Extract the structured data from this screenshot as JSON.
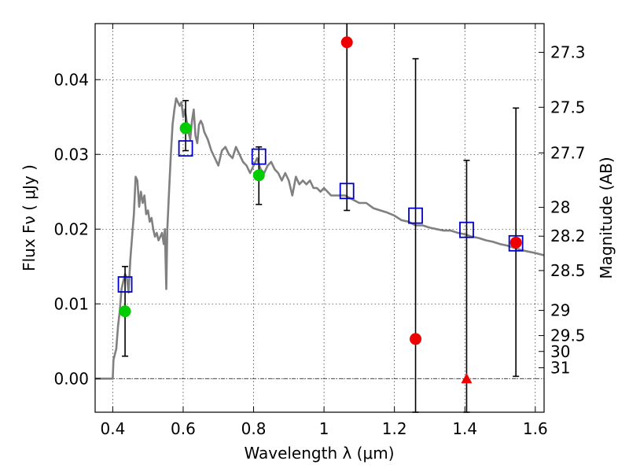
{
  "chart_data": {
    "type": "scatter",
    "xlabel": "Wavelength  λ (μm)",
    "ylabel": "Flux  Fν  ( μJy )",
    "y2label": "Magnitude (AB)",
    "xlim": [
      0.35,
      1.625
    ],
    "ylim": [
      -0.0045,
      0.0475
    ],
    "grid": true,
    "x_ticks": [
      {
        "v": 0.4,
        "label": "0.4"
      },
      {
        "v": 0.6,
        "label": "0.6"
      },
      {
        "v": 0.8,
        "label": "0.8"
      },
      {
        "v": 1.0,
        "label": "1"
      },
      {
        "v": 1.2,
        "label": "1.2"
      },
      {
        "v": 1.4,
        "label": "1.4"
      },
      {
        "v": 1.6,
        "label": "1.6"
      }
    ],
    "y_ticks": [
      {
        "v": 0.0,
        "label": "0.00"
      },
      {
        "v": 0.01,
        "label": "0.01"
      },
      {
        "v": 0.02,
        "label": "0.02"
      },
      {
        "v": 0.03,
        "label": "0.03"
      },
      {
        "v": 0.04,
        "label": "0.04"
      }
    ],
    "magnitude_ticks": [
      {
        "mag": 27.3,
        "label": "27.3"
      },
      {
        "mag": 27.5,
        "label": "27.5"
      },
      {
        "mag": 27.7,
        "label": "27.7"
      },
      {
        "mag": 28,
        "label": "28"
      },
      {
        "mag": 28.2,
        "label": "28.2"
      },
      {
        "mag": 28.5,
        "label": "28.5"
      },
      {
        "mag": 29,
        "label": "29"
      },
      {
        "mag": 29.5,
        "label": "29.5"
      },
      {
        "mag": 30,
        "label": "30"
      },
      {
        "mag": 31,
        "label": "31"
      }
    ],
    "series": [
      {
        "kind": "line",
        "color": "#808080",
        "points": [
          [
            0.35,
            0.0
          ],
          [
            0.4,
            0.0
          ],
          [
            0.402,
            0.0025
          ],
          [
            0.41,
            0.004
          ],
          [
            0.415,
            0.007
          ],
          [
            0.42,
            0.009
          ],
          [
            0.425,
            0.012
          ],
          [
            0.43,
            0.013
          ],
          [
            0.435,
            0.014
          ],
          [
            0.44,
            0.0135
          ],
          [
            0.445,
            0.0115
          ],
          [
            0.45,
            0.016
          ],
          [
            0.455,
            0.019
          ],
          [
            0.46,
            0.022
          ],
          [
            0.465,
            0.027
          ],
          [
            0.47,
            0.0265
          ],
          [
            0.475,
            0.023
          ],
          [
            0.48,
            0.025
          ],
          [
            0.485,
            0.0235
          ],
          [
            0.49,
            0.0245
          ],
          [
            0.495,
            0.022
          ],
          [
            0.5,
            0.0225
          ],
          [
            0.505,
            0.021
          ],
          [
            0.51,
            0.0215
          ],
          [
            0.515,
            0.02
          ],
          [
            0.52,
            0.019
          ],
          [
            0.525,
            0.0195
          ],
          [
            0.53,
            0.0185
          ],
          [
            0.535,
            0.019
          ],
          [
            0.54,
            0.0195
          ],
          [
            0.545,
            0.018
          ],
          [
            0.548,
            0.02
          ],
          [
            0.552,
            0.012
          ],
          [
            0.555,
            0.02
          ],
          [
            0.56,
            0.025
          ],
          [
            0.565,
            0.03
          ],
          [
            0.57,
            0.034
          ],
          [
            0.575,
            0.036
          ],
          [
            0.58,
            0.0375
          ],
          [
            0.585,
            0.037
          ],
          [
            0.59,
            0.0365
          ],
          [
            0.595,
            0.037
          ],
          [
            0.6,
            0.035
          ],
          [
            0.605,
            0.036
          ],
          [
            0.61,
            0.0345
          ],
          [
            0.615,
            0.033
          ],
          [
            0.62,
            0.032
          ],
          [
            0.625,
            0.0345
          ],
          [
            0.63,
            0.036
          ],
          [
            0.635,
            0.0325
          ],
          [
            0.64,
            0.0315
          ],
          [
            0.645,
            0.034
          ],
          [
            0.65,
            0.0345
          ],
          [
            0.655,
            0.034
          ],
          [
            0.66,
            0.033
          ],
          [
            0.67,
            0.032
          ],
          [
            0.68,
            0.0305
          ],
          [
            0.69,
            0.0295
          ],
          [
            0.7,
            0.0285
          ],
          [
            0.71,
            0.0305
          ],
          [
            0.72,
            0.031
          ],
          [
            0.73,
            0.03
          ],
          [
            0.74,
            0.0295
          ],
          [
            0.75,
            0.031
          ],
          [
            0.76,
            0.03
          ],
          [
            0.77,
            0.029
          ],
          [
            0.78,
            0.0285
          ],
          [
            0.79,
            0.0275
          ],
          [
            0.8,
            0.0285
          ],
          [
            0.81,
            0.0295
          ],
          [
            0.82,
            0.028
          ],
          [
            0.83,
            0.0275
          ],
          [
            0.84,
            0.0285
          ],
          [
            0.85,
            0.029
          ],
          [
            0.86,
            0.028
          ],
          [
            0.87,
            0.0275
          ],
          [
            0.88,
            0.0265
          ],
          [
            0.89,
            0.0275
          ],
          [
            0.9,
            0.0265
          ],
          [
            0.91,
            0.0245
          ],
          [
            0.92,
            0.027
          ],
          [
            0.93,
            0.026
          ],
          [
            0.94,
            0.0265
          ],
          [
            0.95,
            0.026
          ],
          [
            0.96,
            0.0265
          ],
          [
            0.97,
            0.0255
          ],
          [
            0.98,
            0.0255
          ],
          [
            0.99,
            0.025
          ],
          [
            1.0,
            0.0255
          ],
          [
            1.02,
            0.0245
          ],
          [
            1.04,
            0.0245
          ],
          [
            1.06,
            0.0245
          ],
          [
            1.08,
            0.024
          ],
          [
            1.1,
            0.0235
          ],
          [
            1.12,
            0.0235
          ],
          [
            1.14,
            0.0228
          ],
          [
            1.16,
            0.0225
          ],
          [
            1.18,
            0.0222
          ],
          [
            1.2,
            0.0218
          ],
          [
            1.22,
            0.0212
          ],
          [
            1.24,
            0.021
          ],
          [
            1.26,
            0.0205
          ],
          [
            1.28,
            0.0205
          ],
          [
            1.3,
            0.0202
          ],
          [
            1.32,
            0.02
          ],
          [
            1.34,
            0.0198
          ],
          [
            1.36,
            0.0198
          ],
          [
            1.38,
            0.0195
          ],
          [
            1.4,
            0.0193
          ],
          [
            1.42,
            0.019
          ],
          [
            1.44,
            0.0188
          ],
          [
            1.46,
            0.0185
          ],
          [
            1.48,
            0.0183
          ],
          [
            1.5,
            0.018
          ],
          [
            1.52,
            0.0178
          ],
          [
            1.54,
            0.0175
          ],
          [
            1.56,
            0.0172
          ],
          [
            1.58,
            0.017
          ],
          [
            1.6,
            0.0168
          ],
          [
            1.625,
            0.0165
          ]
        ]
      },
      {
        "kind": "errorbar",
        "color": "#000000",
        "points": [
          {
            "x": 0.435,
            "y": 0.009,
            "lo": 0.003,
            "hi": 0.015
          },
          {
            "x": 0.607,
            "y": 0.0335,
            "lo": 0.0305,
            "hi": 0.0372
          },
          {
            "x": 0.815,
            "y": 0.0272,
            "lo": 0.0233,
            "hi": 0.031
          },
          {
            "x": 1.065,
            "y": 0.045,
            "lo": 0.0225,
            "hi": 0.048
          },
          {
            "x": 1.26,
            "y": 0.0053,
            "lo": -0.0045,
            "hi": 0.0428
          },
          {
            "x": 1.405,
            "y": 0.0,
            "lo": -0.0045,
            "hi": 0.0292
          },
          {
            "x": 1.545,
            "y": 0.0182,
            "lo": 0.0003,
            "hi": 0.0362
          }
        ]
      },
      {
        "kind": "points",
        "marker": "open-square",
        "color": "#0000cc",
        "points": [
          [
            0.435,
            0.0126
          ],
          [
            0.607,
            0.0308
          ],
          [
            0.815,
            0.0297
          ],
          [
            1.065,
            0.0251
          ],
          [
            1.26,
            0.0218
          ],
          [
            1.405,
            0.0199
          ],
          [
            1.545,
            0.0181
          ]
        ]
      },
      {
        "kind": "points",
        "marker": "circle",
        "color": "#00cc00",
        "points": [
          [
            0.435,
            0.009
          ],
          [
            0.607,
            0.0335
          ],
          [
            0.815,
            0.0272
          ]
        ]
      },
      {
        "kind": "points",
        "marker": "circle",
        "color": "#ee0000",
        "points": [
          [
            1.065,
            0.045
          ],
          [
            1.26,
            0.0053
          ],
          [
            1.545,
            0.0182
          ]
        ]
      },
      {
        "kind": "points",
        "marker": "triangle",
        "color": "#ee0000",
        "points": [
          [
            1.405,
            0.0
          ]
        ]
      }
    ]
  }
}
